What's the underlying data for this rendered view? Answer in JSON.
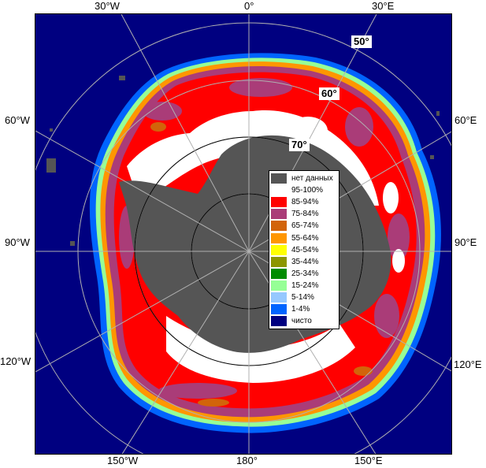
{
  "map": {
    "longitude_labels": {
      "top_30w": "30°W",
      "top_0": "0°",
      "top_30e": "30°E",
      "left_60w": "60°W",
      "left_90w": "90°W",
      "left_120w": "120°W",
      "right_60e": "60°E",
      "right_90e": "90°E",
      "right_120e": "120°E",
      "bottom_150w": "150°W",
      "bottom_180": "180°",
      "bottom_150e": "150°E"
    },
    "latitude_labels": {
      "lat_50": "50°",
      "lat_60": "60°",
      "lat_70": "70°"
    },
    "colors": {
      "ocean_clear": "#000080",
      "no_data": "#555555",
      "grid": "#b0b0b0"
    }
  },
  "legend": {
    "items": [
      {
        "label": "нет данных",
        "color": "#555555"
      },
      {
        "label": "95-100%",
        "color": "#ffffff"
      },
      {
        "label": "85-94%",
        "color": "#ff0000"
      },
      {
        "label": "75-84%",
        "color": "#aa3c78"
      },
      {
        "label": "65-74%",
        "color": "#d2640a"
      },
      {
        "label": "55-64%",
        "color": "#ff9600"
      },
      {
        "label": "45-54%",
        "color": "#ffff00"
      },
      {
        "label": "35-44%",
        "color": "#8c9600"
      },
      {
        "label": "25-34%",
        "color": "#008c00"
      },
      {
        "label": "15-24%",
        "color": "#96ff96"
      },
      {
        "label": "5-14%",
        "color": "#96c8ff"
      },
      {
        "label": "1-4%",
        "color": "#0064ff"
      },
      {
        "label": "чисто",
        "color": "#000080"
      }
    ]
  }
}
